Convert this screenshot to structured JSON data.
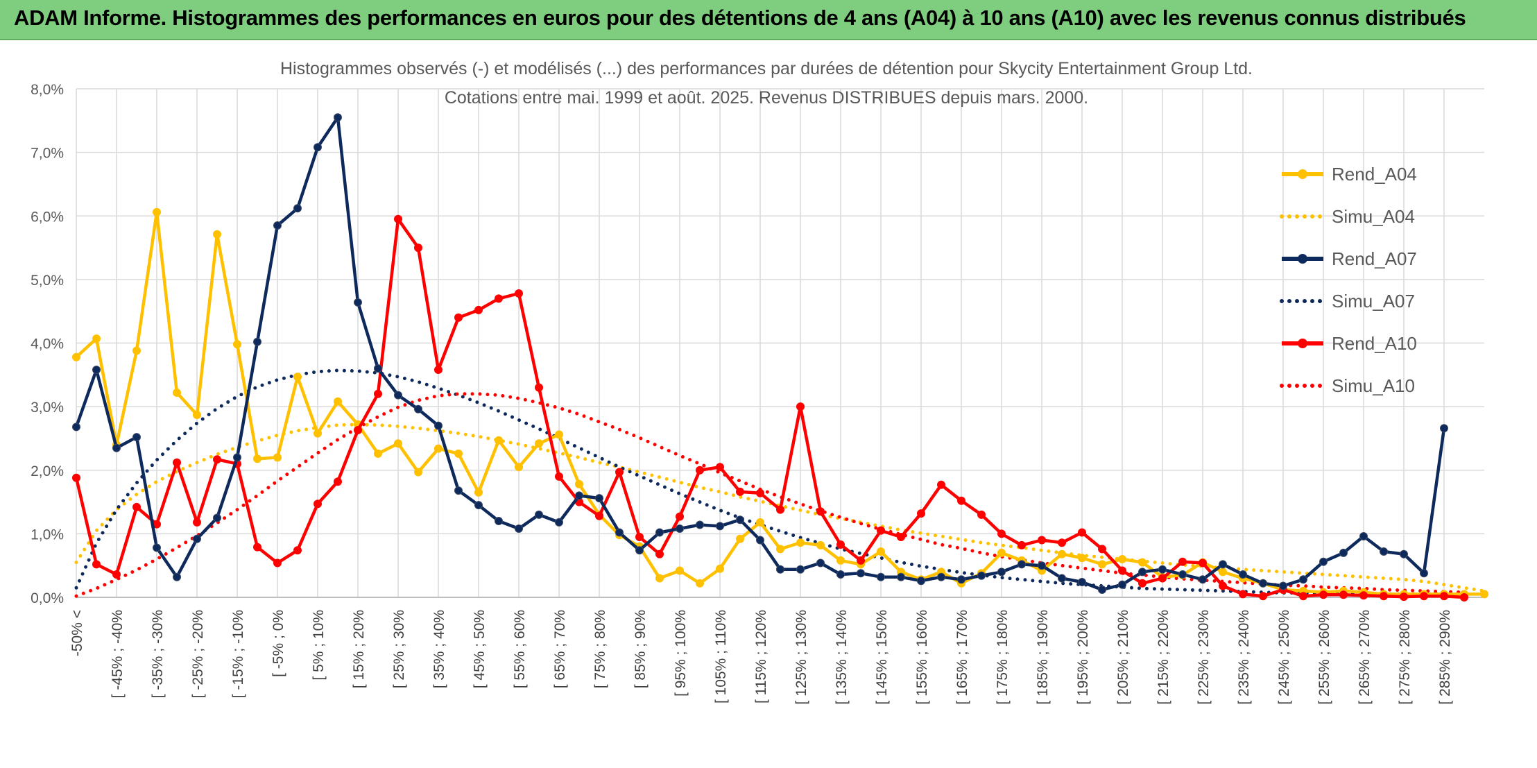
{
  "header": {
    "title": "ADAM Informe. Histogrammes des performances en euros pour des détentions de 4 ans (A04) à 10 ans (A10) avec les revenus connus distribués"
  },
  "chart_data": {
    "type": "line",
    "title": "Histogrammes observés (-) et modélisés (...) des performances par durées de détention pour Skycity Entertainment Group Ltd.",
    "subtitle": "Cotations entre mai. 1999 et août. 2025. Revenus DISTRIBUES depuis mars. 2000.",
    "xlabel": "",
    "ylabel": "",
    "ylim": [
      0,
      8
    ],
    "y_ticks": [
      "0,0%",
      "1,0%",
      "2,0%",
      "3,0%",
      "4,0%",
      "5,0%",
      "6,0%",
      "7,0%",
      "8,0%"
    ],
    "grid": true,
    "legend_position": "right",
    "x_tick_labels": [
      "-50% <",
      "[ -45% ; -40%",
      "[ -35% ; -30%",
      "[ -25% ; -20%",
      "[ -15% ; -10%",
      "[ -5% ; 0%",
      "[ 5% ; 10%",
      "[ 15% ; 20%",
      "[ 25% ; 30%",
      "[ 35% ; 40%",
      "[ 45% ; 50%",
      "[ 55% ; 60%",
      "[ 65% ; 70%",
      "[ 75% ; 80%",
      "[ 85% ; 90%",
      "[ 95% ; 100%",
      "[ 105% ; 110%",
      "[ 115% ; 120%",
      "[ 125% ; 130%",
      "[ 135% ; 140%",
      "[ 145% ; 150%",
      "[ 155% ; 160%",
      "[ 165% ; 170%",
      "[ 175% ; 180%",
      "[ 185% ; 190%",
      "[ 195% ; 200%",
      "[ 205% ; 210%",
      "[ 215% ; 220%",
      "[ 225% ; 230%",
      "[ 235% ; 240%",
      "[ 245% ; 250%",
      "[ 255% ; 260%",
      "[ 265% ; 270%",
      "[ 275% ; 280%",
      "[ 285% ; 290%"
    ],
    "series": [
      {
        "name": "Rend_A04",
        "color": "#ffc000",
        "style": "solid",
        "markers": true,
        "values": [
          3.78,
          4.07,
          2.4,
          3.88,
          6.06,
          3.22,
          2.87,
          5.71,
          3.98,
          2.18,
          2.2,
          3.47,
          2.58,
          3.08,
          2.72,
          2.26,
          2.42,
          1.97,
          2.34,
          2.26,
          1.65,
          2.47,
          2.05,
          2.42,
          2.56,
          1.78,
          1.3,
          0.98,
          0.8,
          0.3,
          0.42,
          0.22,
          0.45,
          0.92,
          1.18,
          0.76,
          0.86,
          0.82,
          0.58,
          0.52,
          0.72,
          0.4,
          0.28,
          0.4,
          0.22,
          0.38,
          0.7,
          0.58,
          0.42,
          0.68,
          0.62,
          0.52,
          0.6,
          0.55,
          0.32,
          0.35,
          0.55,
          0.4,
          0.3,
          0.22,
          0.12,
          0.1,
          0.08,
          0.1,
          0.08,
          0.05,
          0.05,
          0.05,
          0.05,
          0.05,
          0.05
        ]
      },
      {
        "name": "Simu_A04",
        "color": "#ffc000",
        "style": "dotted",
        "markers": false,
        "values": [
          0.55,
          1.05,
          1.38,
          1.62,
          1.82,
          1.98,
          2.12,
          2.25,
          2.36,
          2.46,
          2.55,
          2.62,
          2.67,
          2.71,
          2.72,
          2.71,
          2.69,
          2.66,
          2.62,
          2.58,
          2.53,
          2.47,
          2.41,
          2.34,
          2.27,
          2.2,
          2.12,
          2.05,
          1.97,
          1.89,
          1.81,
          1.73,
          1.66,
          1.58,
          1.51,
          1.44,
          1.37,
          1.3,
          1.24,
          1.18,
          1.12,
          1.06,
          1.01,
          0.96,
          0.91,
          0.86,
          0.82,
          0.78,
          0.74,
          0.7,
          0.66,
          0.63,
          0.6,
          0.57,
          0.54,
          0.51,
          0.49,
          0.46,
          0.44,
          0.42,
          0.4,
          0.38,
          0.36,
          0.34,
          0.32,
          0.3,
          0.28,
          0.25,
          0.2,
          0.15,
          0.1
        ]
      },
      {
        "name": "Rend_A07",
        "color": "#0e2a5c",
        "style": "solid",
        "markers": true,
        "values": [
          2.68,
          3.58,
          2.35,
          2.52,
          0.78,
          0.32,
          0.92,
          1.25,
          2.2,
          4.02,
          5.85,
          6.12,
          7.08,
          7.55,
          4.64,
          3.6,
          3.18,
          2.96,
          2.7,
          1.68,
          1.45,
          1.2,
          1.08,
          1.3,
          1.18,
          1.6,
          1.56,
          1.02,
          0.74,
          1.02,
          1.08,
          1.14,
          1.12,
          1.22,
          0.9,
          0.44,
          0.44,
          0.54,
          0.36,
          0.38,
          0.32,
          0.32,
          0.26,
          0.32,
          0.28,
          0.34,
          0.4,
          0.52,
          0.5,
          0.3,
          0.24,
          0.12,
          0.2,
          0.4,
          0.44,
          0.36,
          0.28,
          0.52,
          0.36,
          0.22,
          0.18,
          0.28,
          0.56,
          0.7,
          0.96,
          0.72,
          0.68,
          0.38,
          2.66
        ]
      },
      {
        "name": "Simu_A07",
        "color": "#0e2a5c",
        "style": "dotted",
        "markers": false,
        "values": [
          0.15,
          0.85,
          1.38,
          1.8,
          2.16,
          2.47,
          2.74,
          2.97,
          3.16,
          3.31,
          3.42,
          3.5,
          3.55,
          3.57,
          3.56,
          3.53,
          3.47,
          3.39,
          3.29,
          3.18,
          3.06,
          2.93,
          2.79,
          2.65,
          2.5,
          2.35,
          2.2,
          2.05,
          1.91,
          1.77,
          1.63,
          1.5,
          1.37,
          1.25,
          1.14,
          1.04,
          0.94,
          0.85,
          0.76,
          0.69,
          0.62,
          0.55,
          0.49,
          0.44,
          0.39,
          0.35,
          0.31,
          0.28,
          0.25,
          0.22,
          0.2,
          0.18,
          0.16,
          0.14,
          0.13,
          0.12,
          0.11,
          0.1,
          0.09,
          0.08,
          0.07,
          0.07,
          0.06,
          0.06,
          0.05,
          0.05,
          0.05,
          0.05,
          0.05
        ]
      },
      {
        "name": "Rend_A10",
        "color": "#ff0000",
        "style": "solid",
        "markers": true,
        "values": [
          1.88,
          0.52,
          0.36,
          1.42,
          1.15,
          2.12,
          1.18,
          2.17,
          2.1,
          0.79,
          0.54,
          0.74,
          1.47,
          1.82,
          2.63,
          3.2,
          5.95,
          5.5,
          3.58,
          4.4,
          4.52,
          4.7,
          4.78,
          3.3,
          1.9,
          1.5,
          1.28,
          1.97,
          0.95,
          0.68,
          1.27,
          2.0,
          2.05,
          1.66,
          1.64,
          1.38,
          3.0,
          1.35,
          0.83,
          0.58,
          1.05,
          0.95,
          1.32,
          1.77,
          1.52,
          1.3,
          1.0,
          0.82,
          0.9,
          0.86,
          1.02,
          0.76,
          0.42,
          0.22,
          0.3,
          0.56,
          0.54,
          0.18,
          0.05,
          0.02,
          0.12,
          0.02,
          0.04,
          0.04,
          0.03,
          0.02,
          0.01,
          0.02,
          0.02,
          0.0
        ]
      },
      {
        "name": "Simu_A10",
        "color": "#ff0000",
        "style": "dotted",
        "markers": false,
        "values": [
          0.02,
          0.14,
          0.28,
          0.43,
          0.6,
          0.78,
          0.97,
          1.17,
          1.38,
          1.6,
          1.83,
          2.05,
          2.27,
          2.48,
          2.67,
          2.84,
          2.99,
          3.1,
          3.17,
          3.2,
          3.2,
          3.18,
          3.13,
          3.06,
          2.98,
          2.88,
          2.76,
          2.64,
          2.51,
          2.37,
          2.23,
          2.1,
          1.96,
          1.83,
          1.7,
          1.58,
          1.47,
          1.36,
          1.26,
          1.16,
          1.07,
          0.99,
          0.91,
          0.83,
          0.77,
          0.7,
          0.64,
          0.59,
          0.54,
          0.5,
          0.46,
          0.42,
          0.38,
          0.35,
          0.32,
          0.29,
          0.27,
          0.25,
          0.23,
          0.21,
          0.19,
          0.18,
          0.16,
          0.15,
          0.14,
          0.12,
          0.11,
          0.1,
          0.09,
          0.08
        ]
      }
    ]
  }
}
